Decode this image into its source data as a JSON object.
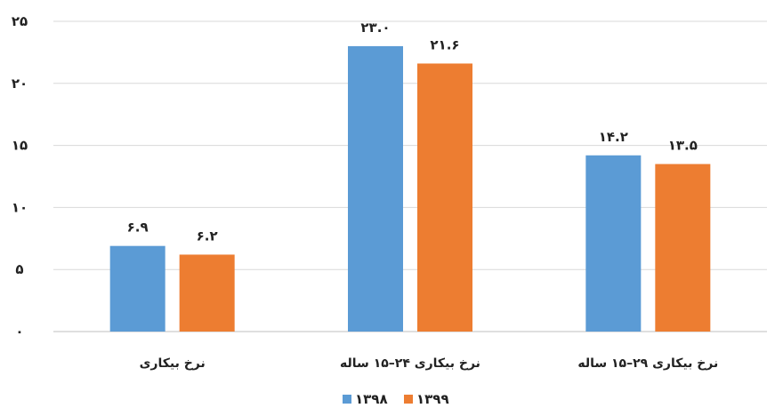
{
  "chart_data": {
    "type": "bar",
    "title": "",
    "xlabel": "",
    "ylabel": "",
    "ylim": [
      0,
      25
    ],
    "ytick_values": [
      0,
      5,
      10,
      15,
      20,
      25
    ],
    "ytick_labels": [
      "٠",
      "۵",
      "١٠",
      "١۵",
      "٢٠",
      "٢۵"
    ],
    "grid": true,
    "legend_position": "bottom",
    "categories": [
      "نرخ بیکاری",
      "نرخ بیکاری ۲۴–۱۵ ساله",
      "نرخ بیکاری ۲۹–۱۵ ساله"
    ],
    "series": [
      {
        "name": "۱۳۹۸",
        "color": "#5B9BD5",
        "values": [
          6.9,
          23.0,
          14.2
        ],
        "value_labels": [
          "۶.۹",
          "۲۳.۰",
          "۱۴.۲"
        ]
      },
      {
        "name": "۱۳۹۹",
        "color": "#ED7D31",
        "values": [
          6.2,
          21.6,
          13.5
        ],
        "value_labels": [
          "۶.۲",
          "۲۱.۶",
          "۱۳.۵"
        ]
      }
    ]
  }
}
